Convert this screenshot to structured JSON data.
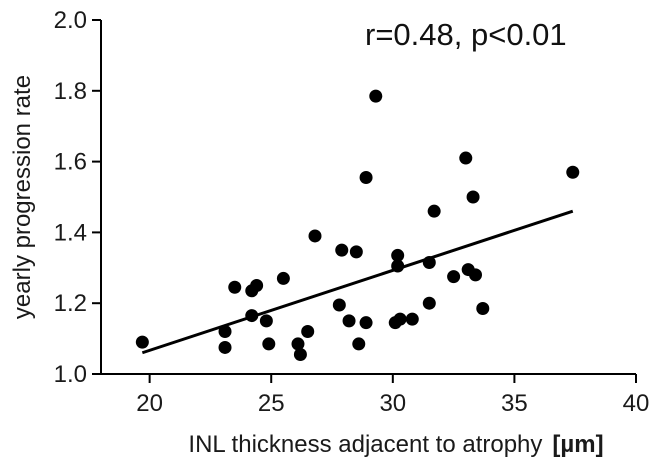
{
  "chart_data": {
    "type": "scatter",
    "title": "",
    "xlabel": "INL thickness adjacent to atrophy",
    "xlabel_unit": "[µm]",
    "ylabel": "yearly progression rate",
    "xlim": [
      18,
      40
    ],
    "ylim": [
      1.0,
      2.0
    ],
    "x_ticks": [
      20,
      25,
      30,
      35,
      40
    ],
    "y_ticks": [
      1.0,
      1.2,
      1.4,
      1.6,
      1.8,
      2.0
    ],
    "x_tick_labels": [
      "20",
      "25",
      "30",
      "35",
      "40"
    ],
    "y_tick_labels": [
      "1.0",
      "1.2",
      "1.4",
      "1.6",
      "1.8",
      "2.0"
    ],
    "annotation": "r=0.48, p<0.01",
    "grid": false,
    "legend": "none",
    "marker_color": "#000000",
    "points": [
      {
        "x": 19.7,
        "y": 1.09
      },
      {
        "x": 23.1,
        "y": 1.12
      },
      {
        "x": 23.1,
        "y": 1.075
      },
      {
        "x": 23.5,
        "y": 1.245
      },
      {
        "x": 24.2,
        "y": 1.235
      },
      {
        "x": 24.4,
        "y": 1.25
      },
      {
        "x": 24.2,
        "y": 1.165
      },
      {
        "x": 24.8,
        "y": 1.15
      },
      {
        "x": 24.9,
        "y": 1.085
      },
      {
        "x": 25.5,
        "y": 1.27
      },
      {
        "x": 26.1,
        "y": 1.085
      },
      {
        "x": 26.2,
        "y": 1.055
      },
      {
        "x": 26.5,
        "y": 1.12
      },
      {
        "x": 26.8,
        "y": 1.39
      },
      {
        "x": 27.8,
        "y": 1.195
      },
      {
        "x": 27.9,
        "y": 1.35
      },
      {
        "x": 28.2,
        "y": 1.15
      },
      {
        "x": 28.5,
        "y": 1.345
      },
      {
        "x": 28.6,
        "y": 1.085
      },
      {
        "x": 28.9,
        "y": 1.555
      },
      {
        "x": 28.9,
        "y": 1.145
      },
      {
        "x": 29.3,
        "y": 1.785
      },
      {
        "x": 30.1,
        "y": 1.145
      },
      {
        "x": 30.2,
        "y": 1.305
      },
      {
        "x": 30.2,
        "y": 1.335
      },
      {
        "x": 30.3,
        "y": 1.155
      },
      {
        "x": 30.8,
        "y": 1.155
      },
      {
        "x": 31.5,
        "y": 1.315
      },
      {
        "x": 31.5,
        "y": 1.2
      },
      {
        "x": 31.7,
        "y": 1.46
      },
      {
        "x": 32.5,
        "y": 1.275
      },
      {
        "x": 33.0,
        "y": 1.61
      },
      {
        "x": 33.1,
        "y": 1.295
      },
      {
        "x": 33.3,
        "y": 1.5
      },
      {
        "x": 33.4,
        "y": 1.28
      },
      {
        "x": 33.7,
        "y": 1.185
      },
      {
        "x": 37.4,
        "y": 1.57
      }
    ],
    "regression_line": {
      "x": [
        19.7,
        37.4
      ],
      "y": [
        1.06,
        1.46
      ]
    }
  }
}
